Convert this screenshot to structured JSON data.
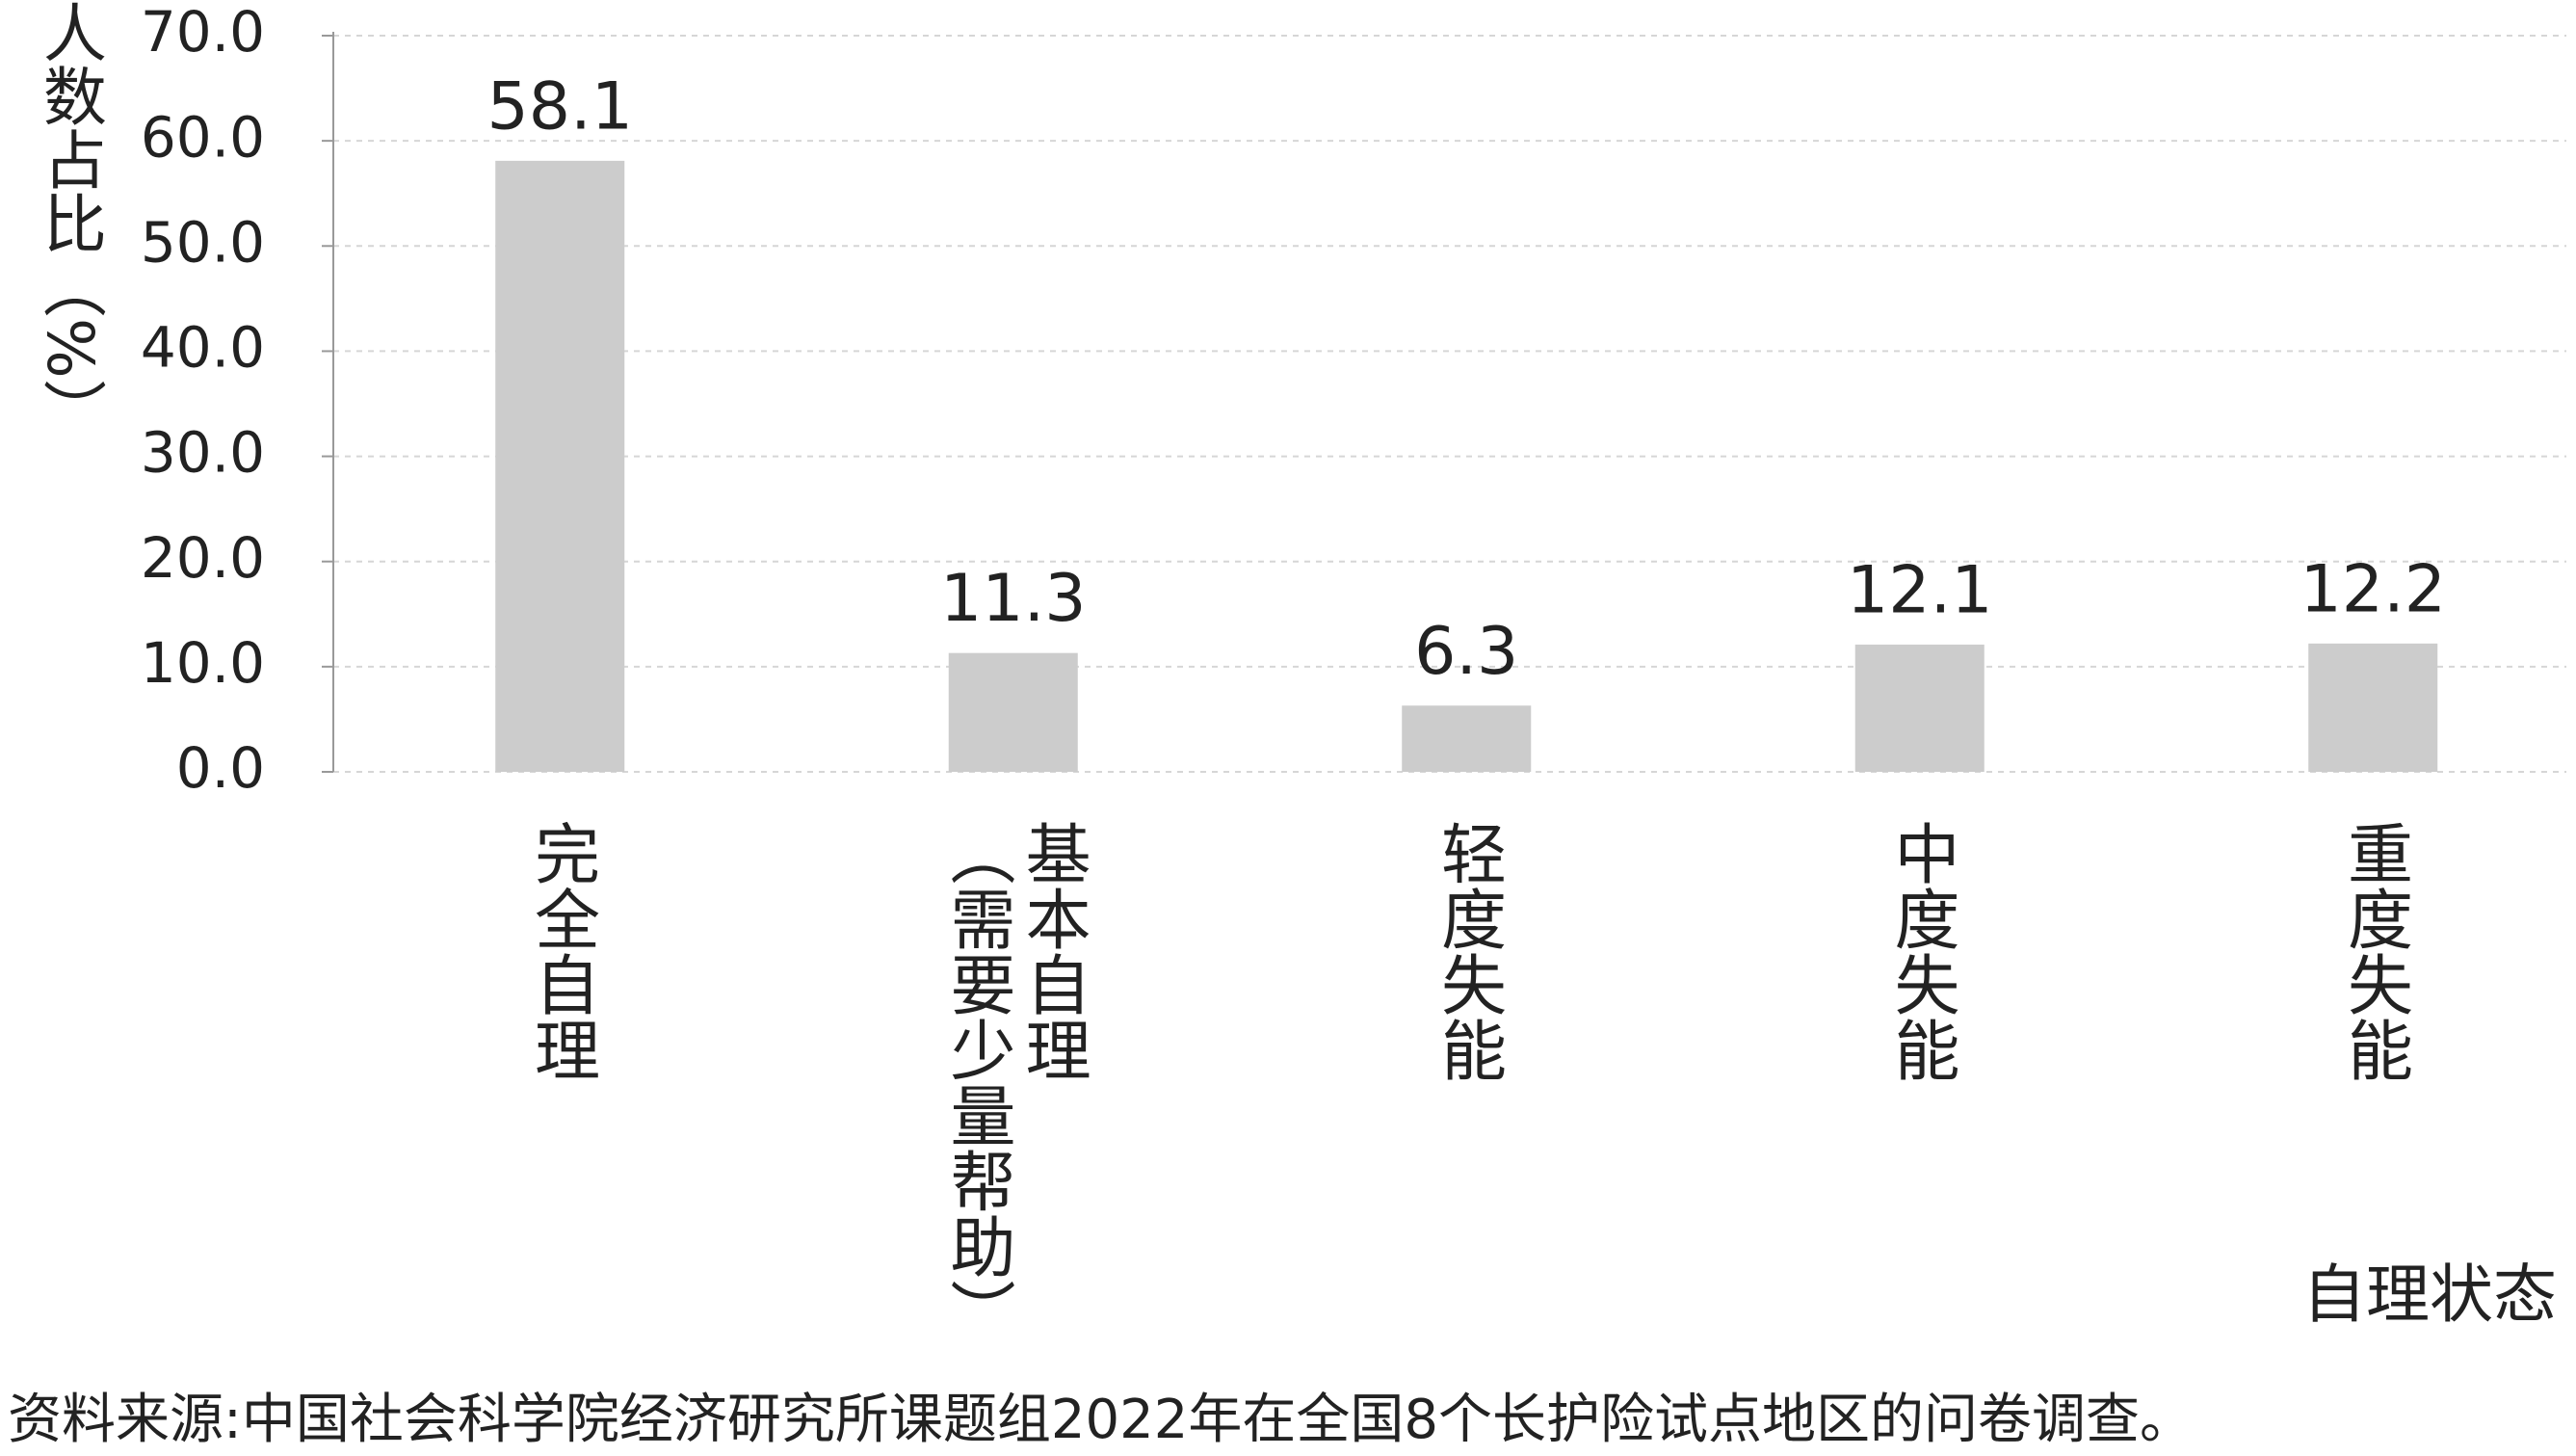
{
  "chart_data": {
    "type": "bar",
    "y_label": "人数占比（%）",
    "x_label": "自理状态",
    "source": "资料来源:中国社会科学院经济研究所课题组2022年在全国8个长护险试点地区的问卷调查。",
    "categories": [
      "完全自理",
      "基本自理\n（需要少量帮助）",
      "轻度失能",
      "中度失能",
      "重度失能"
    ],
    "values": [
      58.1,
      11.3,
      6.3,
      12.1,
      12.2
    ],
    "color": "#cccccc",
    "ylim": [
      0,
      70
    ],
    "yticks": [
      {
        "value": 0,
        "label": "0.0"
      },
      {
        "value": 10,
        "label": "10.0"
      },
      {
        "value": 20,
        "label": "20.0"
      },
      {
        "value": 30,
        "label": "30.0"
      },
      {
        "value": 40,
        "label": "40.0"
      },
      {
        "value": 50,
        "label": "50.0"
      },
      {
        "value": 60,
        "label": "60.0"
      },
      {
        "value": 70,
        "label": "70.0"
      }
    ],
    "grid": true
  }
}
